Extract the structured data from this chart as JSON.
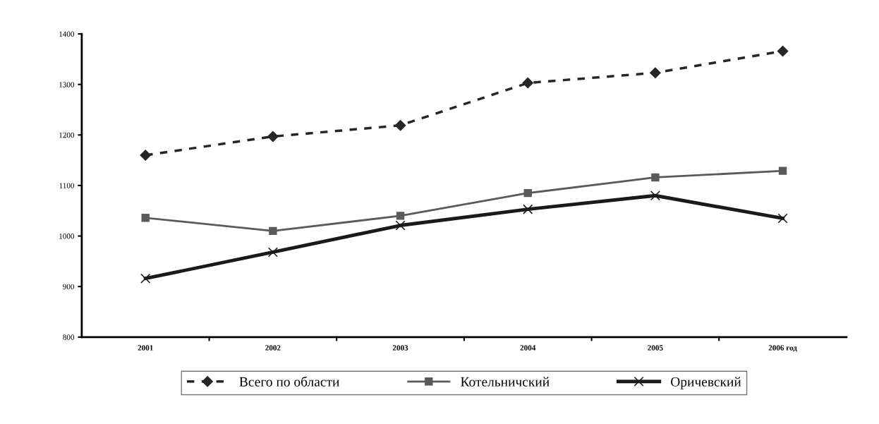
{
  "chart_data": {
    "type": "line",
    "categories": [
      "2001",
      "2002",
      "2003",
      "2004",
      "2005",
      "2006 год"
    ],
    "series": [
      {
        "name": "Всего по области",
        "color": "#262626",
        "marker": "diamond",
        "line_style": "dashed",
        "values": [
          1160,
          1197,
          1219,
          1303,
          1323,
          1366
        ]
      },
      {
        "name": "Котельничский",
        "color": "#5a5a5a",
        "marker": "square",
        "line_style": "solid",
        "values": [
          1036,
          1010,
          1040,
          1085,
          1116,
          1129
        ]
      },
      {
        "name": "Оричевский",
        "color": "#1a1a1a",
        "marker": "cross",
        "line_style": "solid",
        "values": [
          916,
          968,
          1021,
          1053,
          1080,
          1035
        ]
      }
    ],
    "ylim": [
      800,
      1400
    ],
    "yticks": [
      800,
      900,
      1000,
      1100,
      1200,
      1300,
      1400
    ],
    "grid": false,
    "legend": "bottom"
  }
}
